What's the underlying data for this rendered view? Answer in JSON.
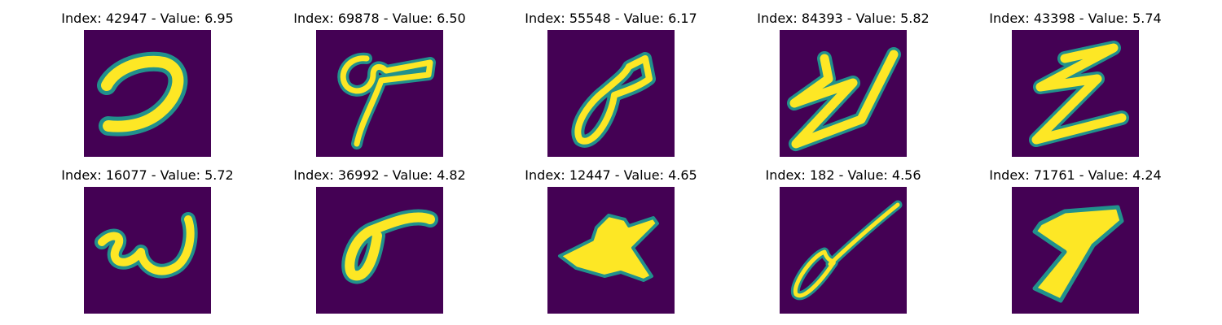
{
  "colors": {
    "background": "#440154",
    "mid": "#21918c",
    "edge": "#31b57b",
    "stroke": "#fde725"
  },
  "panels": [
    {
      "title": "Index: 42947 - Value: 6.95",
      "glyph": "curl-stroke"
    },
    {
      "title": "Index: 69878 - Value: 6.50",
      "glyph": "loop-with-tail"
    },
    {
      "title": "Index: 55548 - Value: 6.17",
      "glyph": "diagonal-loop"
    },
    {
      "title": "Index: 84393 - Value: 5.82",
      "glyph": "zigzag-stroke"
    },
    {
      "title": "Index: 43398 - Value: 5.74",
      "glyph": "z-stroke"
    },
    {
      "title": "Index: 16077 - Value: 5.72",
      "glyph": "w-stroke"
    },
    {
      "title": "Index: 36992 - Value: 4.82",
      "glyph": "sigma-stroke"
    },
    {
      "title": "Index: 12447 - Value: 4.65",
      "glyph": "blob-stroke"
    },
    {
      "title": "Index: 182 - Value: 4.56",
      "glyph": "long-tail-loop"
    },
    {
      "title": "Index: 71761 - Value: 4.24",
      "glyph": "seven-stroke"
    }
  ]
}
